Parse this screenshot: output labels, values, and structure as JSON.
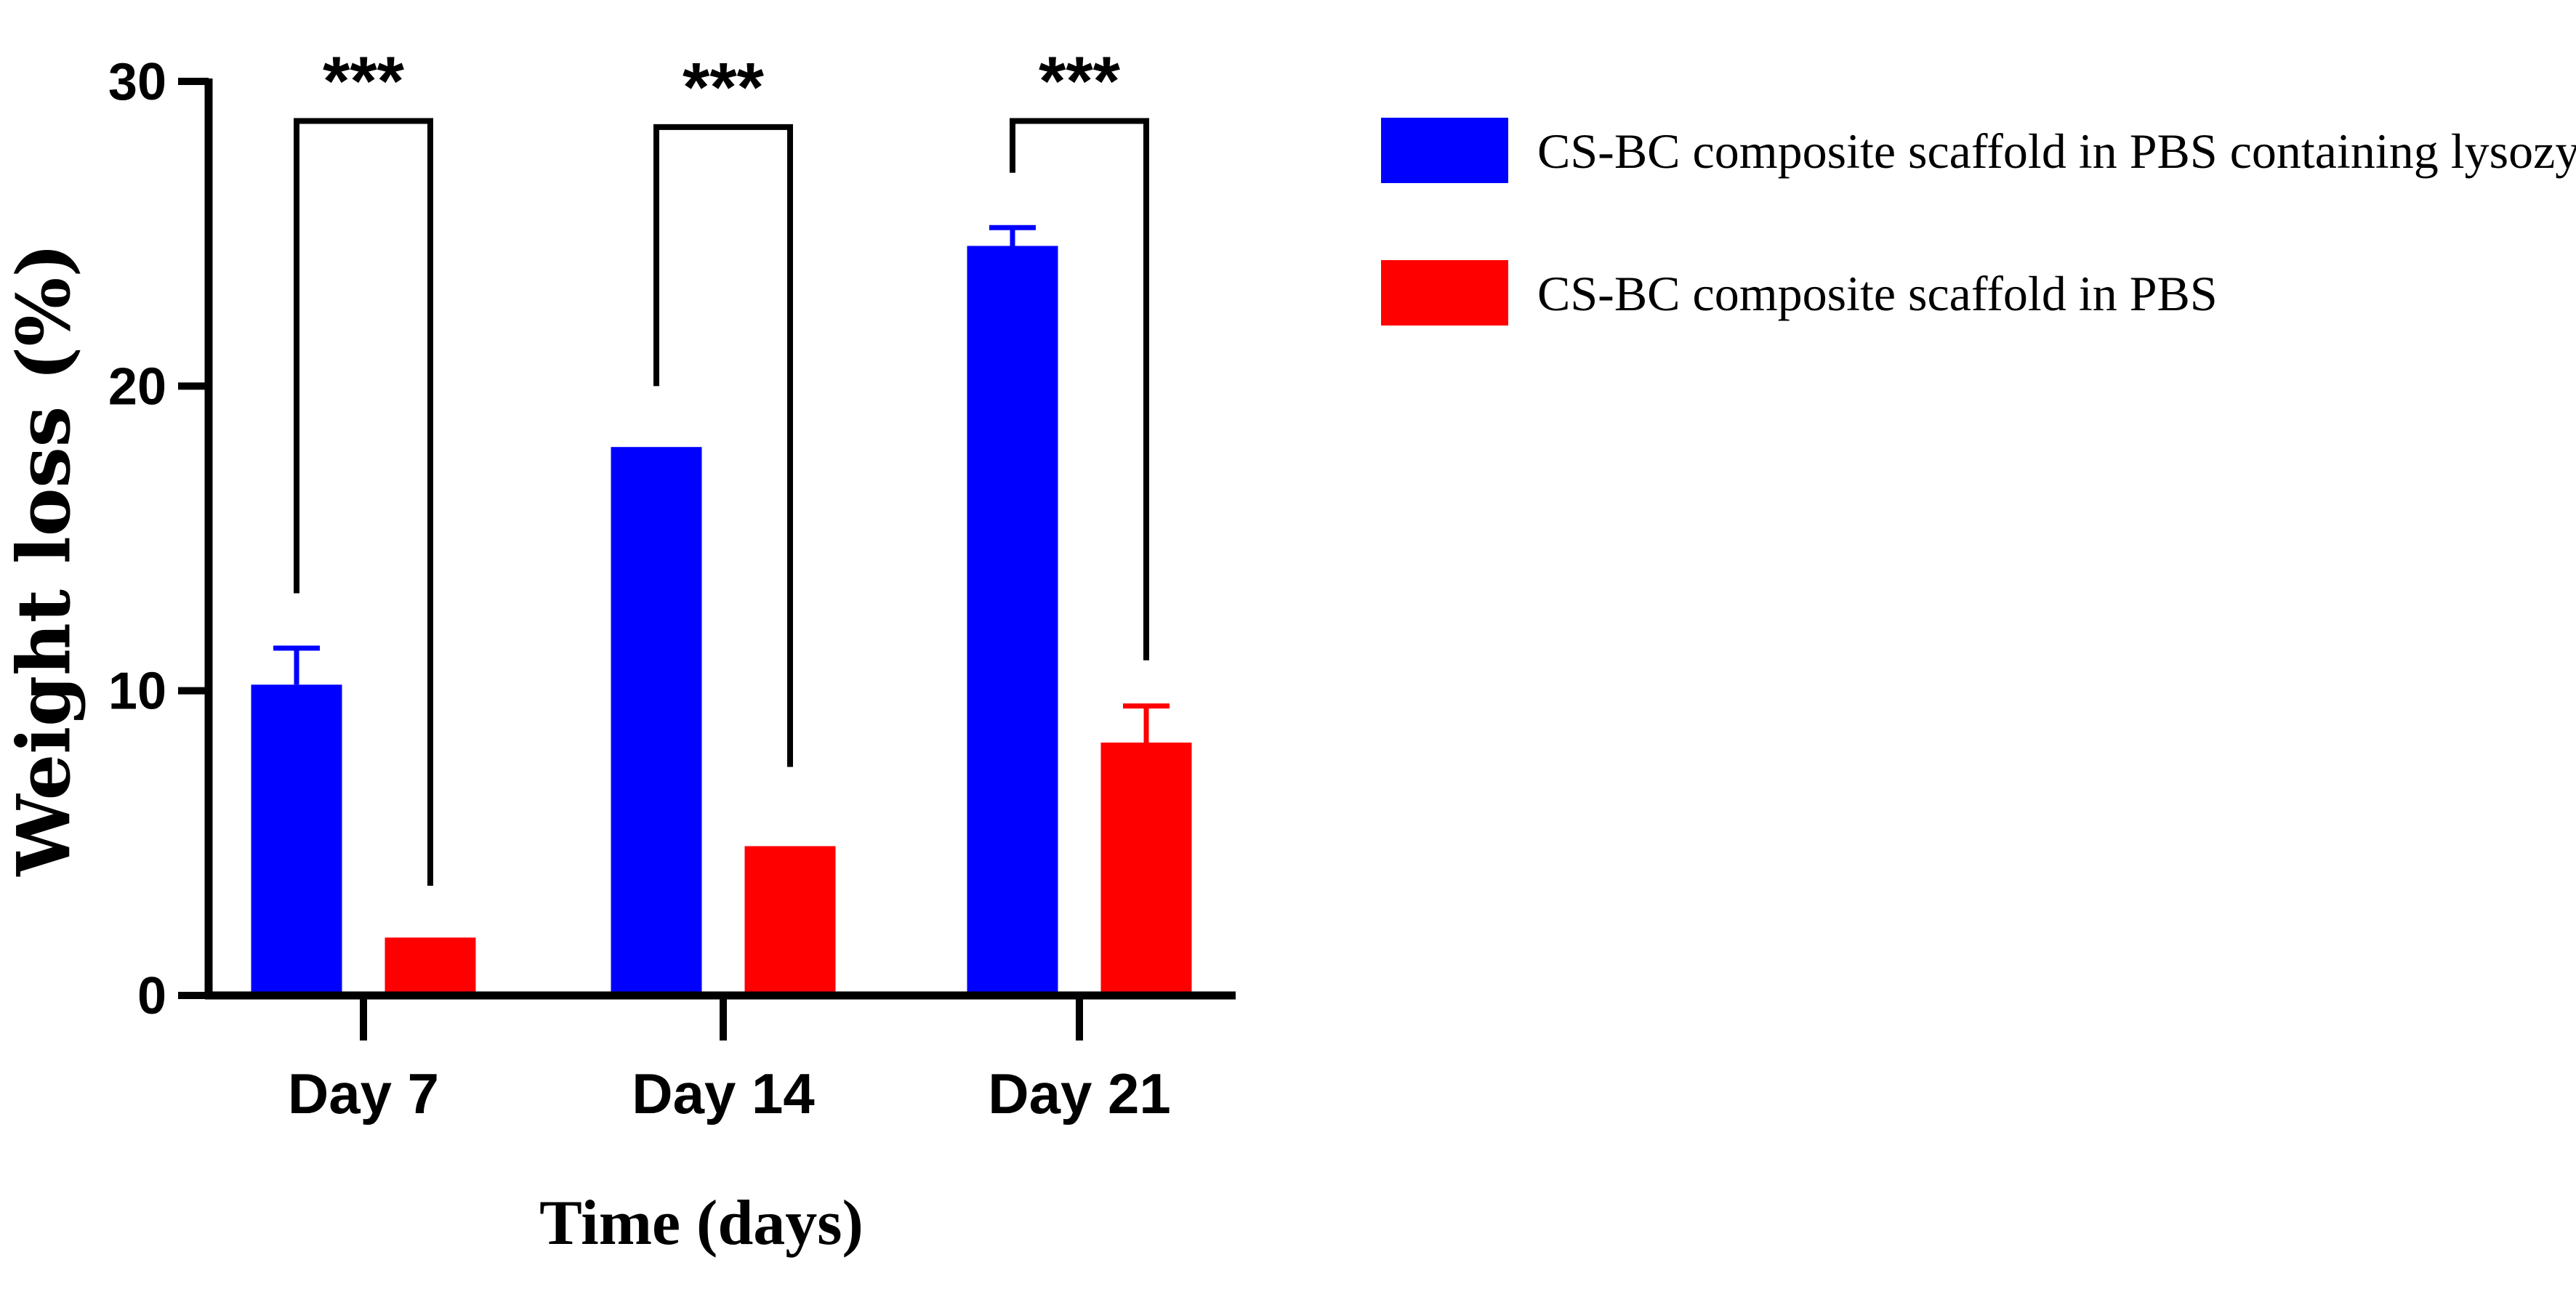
{
  "chart_data": {
    "type": "bar",
    "title": "",
    "xlabel": "Time (days)",
    "ylabel": "Weight loss (%)",
    "ylim": [
      0,
      30
    ],
    "yticks": [
      0,
      10,
      20,
      30
    ],
    "categories": [
      "Day 7",
      "Day 14",
      "Day 21"
    ],
    "series": [
      {
        "name": "CS-BC composite scaffold in PBS containing lysozyme",
        "color": "#0000ff",
        "values": [
          10.2,
          18.0,
          24.6
        ],
        "errors": [
          1.2,
          0,
          0.6
        ]
      },
      {
        "name": "CS-BC composite scaffold in PBS",
        "color": "#ff0000",
        "values": [
          1.9,
          4.9,
          8.3
        ],
        "errors": [
          0,
          0,
          1.2
        ]
      }
    ],
    "significance": [
      {
        "category": "Day 7",
        "label": "***",
        "bracket_top": 28.7,
        "left_end": 13.2,
        "right_end": 3.6
      },
      {
        "category": "Day 14",
        "label": "***",
        "bracket_top": 28.5,
        "left_end": 20.0,
        "right_end": 7.5
      },
      {
        "category": "Day 21",
        "label": "***",
        "bracket_top": 28.7,
        "left_end": 27.0,
        "right_end": 11.0
      }
    ],
    "legend_position": "top-right",
    "grid": false
  }
}
